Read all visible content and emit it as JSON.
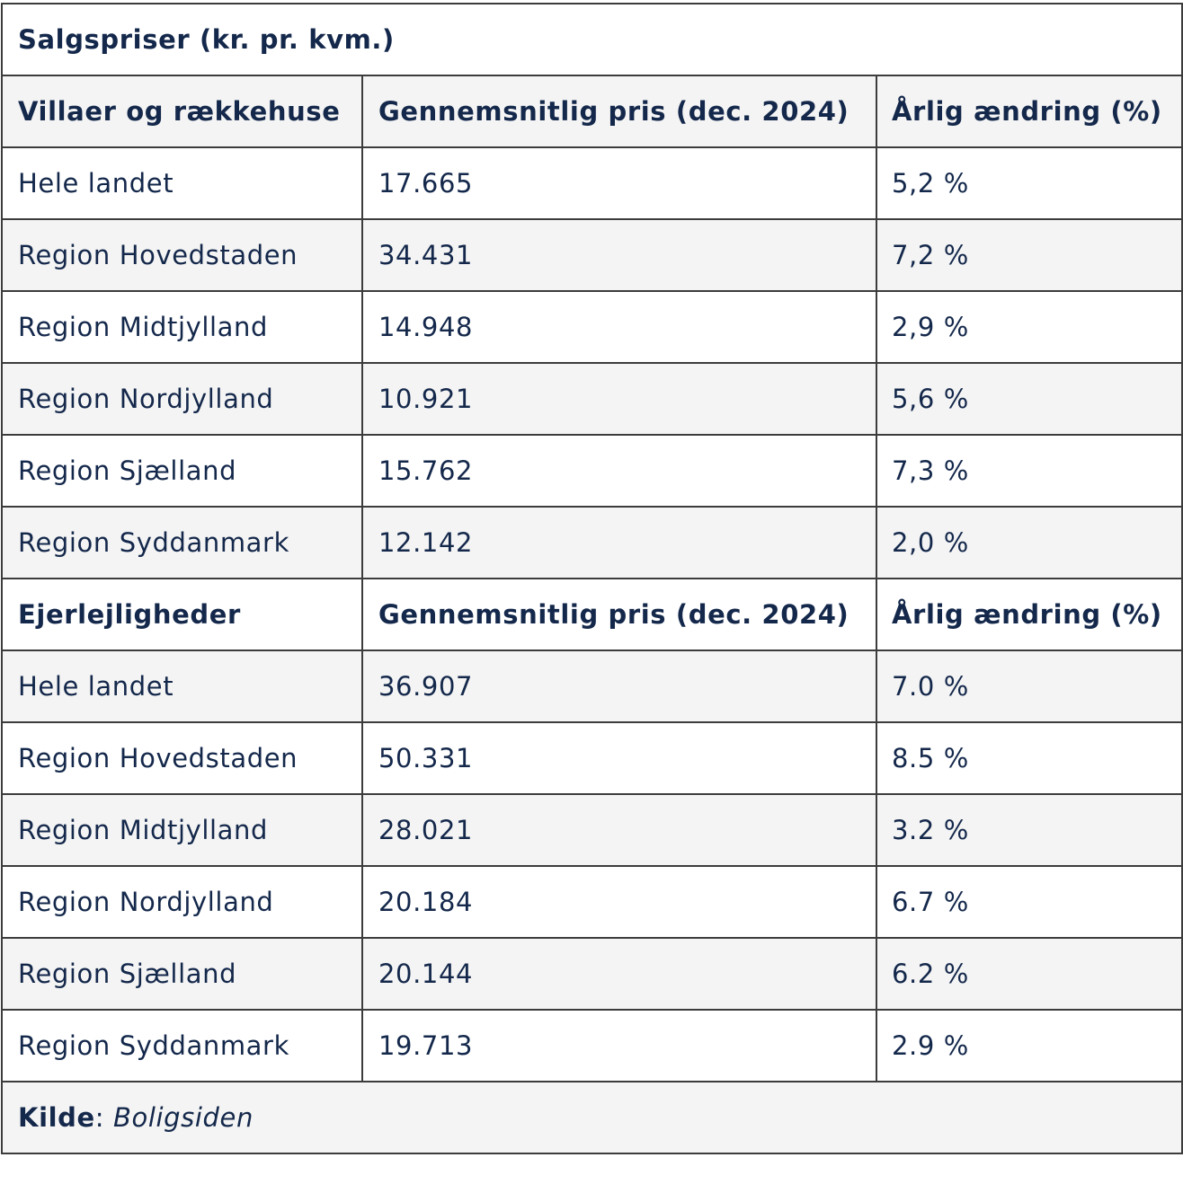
{
  "title": "Salgspriser (kr. pr. kvm.)",
  "sections": [
    {
      "header": [
        "Villaer og rækkehuse",
        "Gennemsnitlig pris (dec. 2024)",
        "Årlig ændring (%)"
      ],
      "rows": [
        [
          "Hele landet",
          "17.665",
          "5,2 %"
        ],
        [
          "Region Hovedstaden",
          "34.431",
          "7,2 %"
        ],
        [
          "Region Midtjylland",
          "14.948",
          "2,9 %"
        ],
        [
          "Region Nordjylland",
          "10.921",
          "5,6 %"
        ],
        [
          "Region Sjælland",
          "15.762",
          "7,3 %"
        ],
        [
          "Region Syddanmark",
          "12.142",
          "2,0 %"
        ]
      ]
    },
    {
      "header": [
        "Ejerlejligheder",
        "Gennemsnitlig pris (dec. 2024)",
        "Årlig ændring (%)"
      ],
      "rows": [
        [
          "Hele landet",
          "36.907",
          "7.0 %"
        ],
        [
          "Region Hovedstaden",
          "50.331",
          "8.5 %"
        ],
        [
          "Region Midtjylland",
          "28.021",
          "3.2 %"
        ],
        [
          "Region Nordjylland",
          "20.184",
          "6.7 %"
        ],
        [
          "Region Sjælland",
          "20.144",
          "6.2 %"
        ],
        [
          "Region Syddanmark",
          "19.713",
          "2.9 %"
        ]
      ]
    }
  ],
  "source": {
    "label": "Kilde",
    "separator": ": ",
    "name": "Boligsiden"
  },
  "colors": {
    "text": "#14284b",
    "border": "#3c3c3c",
    "shaded_row": "#f4f4f4"
  }
}
